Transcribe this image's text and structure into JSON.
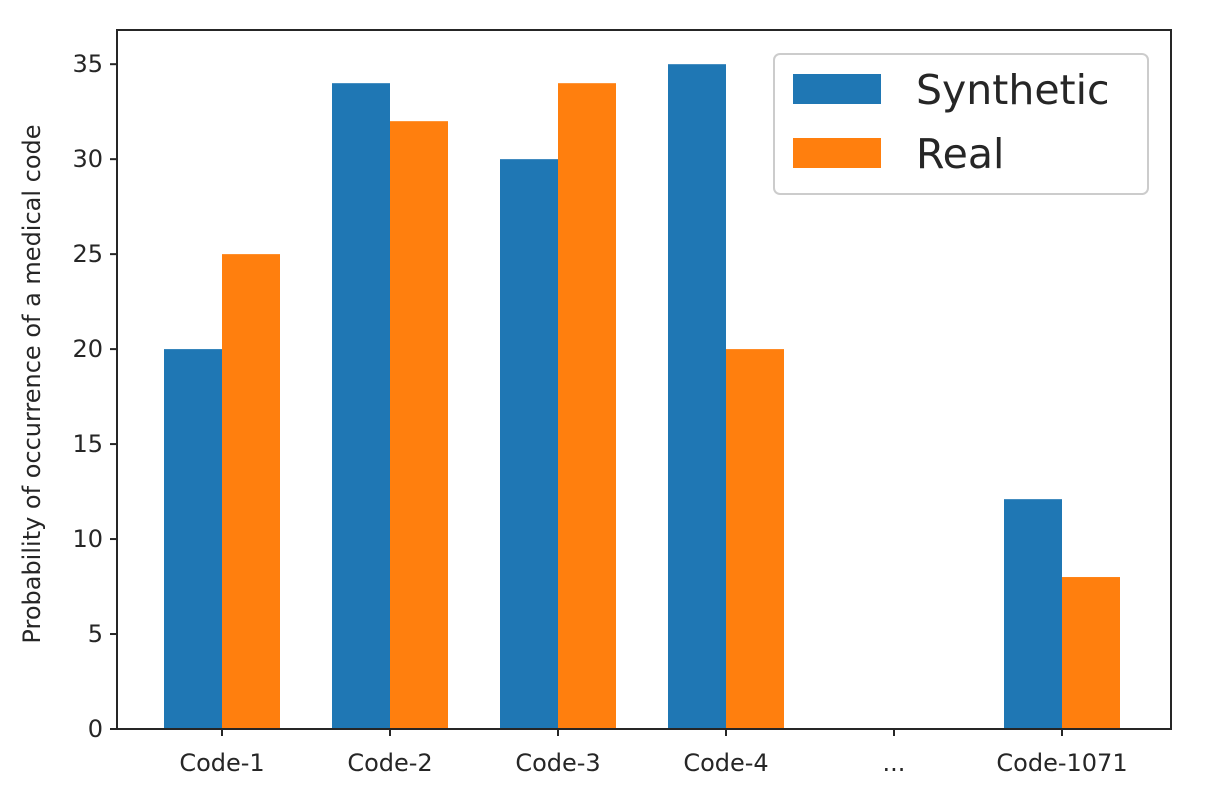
{
  "chart_data": {
    "type": "bar",
    "title": "",
    "xlabel": "",
    "ylabel": "Probability of occurrence of a medical code",
    "categories": [
      "Code-1",
      "Code-2",
      "Code-3",
      "Code-4",
      "...",
      "Code-1071"
    ],
    "series": [
      {
        "name": "Synthetic",
        "color": "#1f77b4",
        "values": [
          20,
          34,
          30,
          35,
          null,
          12.1
        ]
      },
      {
        "name": "Real",
        "color": "#ff7f0e",
        "values": [
          25,
          32,
          34,
          20,
          null,
          8
        ]
      }
    ],
    "ylim": [
      0,
      36.8
    ],
    "yticks": [
      0,
      5,
      10,
      15,
      20,
      25,
      30,
      35
    ],
    "grid": false,
    "legend_position": "top-right"
  }
}
